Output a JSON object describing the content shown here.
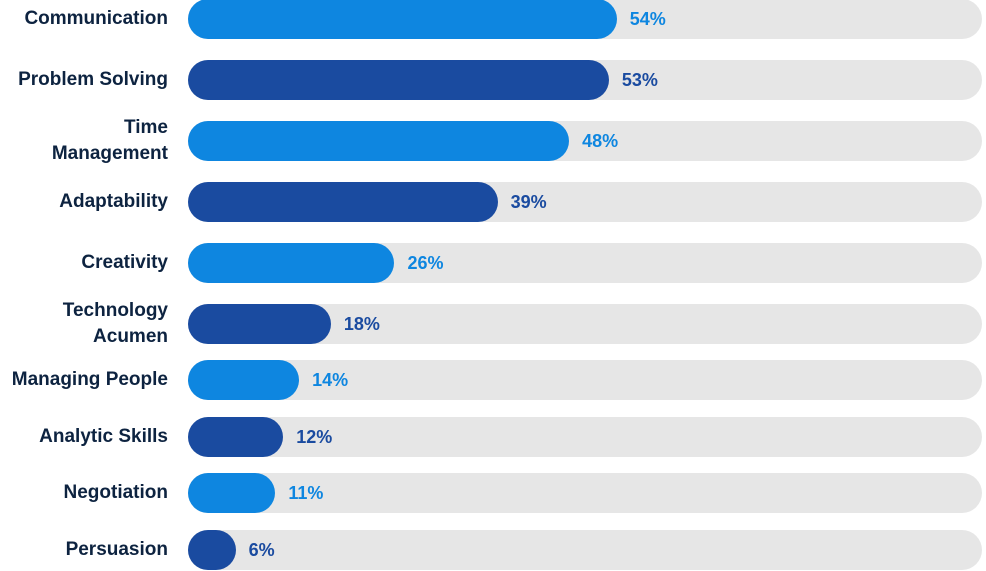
{
  "chart_data": {
    "type": "bar",
    "orientation": "horizontal",
    "xlim": [
      0,
      100
    ],
    "value_suffix": "%",
    "grid": false,
    "colors": [
      "#0e86e0",
      "#1a4ba0"
    ],
    "categories": [
      "Communication",
      "Problem Solving",
      "Time Management",
      "Adaptability",
      "Creativity",
      "Technology Acumen",
      "Managing People",
      "Analytic Skills",
      "Negotiation",
      "Persuasion"
    ],
    "values": [
      54,
      53,
      48,
      39,
      26,
      18,
      14,
      12,
      11,
      6
    ],
    "value_labels": [
      "54%",
      "53%",
      "48%",
      "39%",
      "26%",
      "18%",
      "14%",
      "12%",
      "11%",
      "6%"
    ]
  }
}
